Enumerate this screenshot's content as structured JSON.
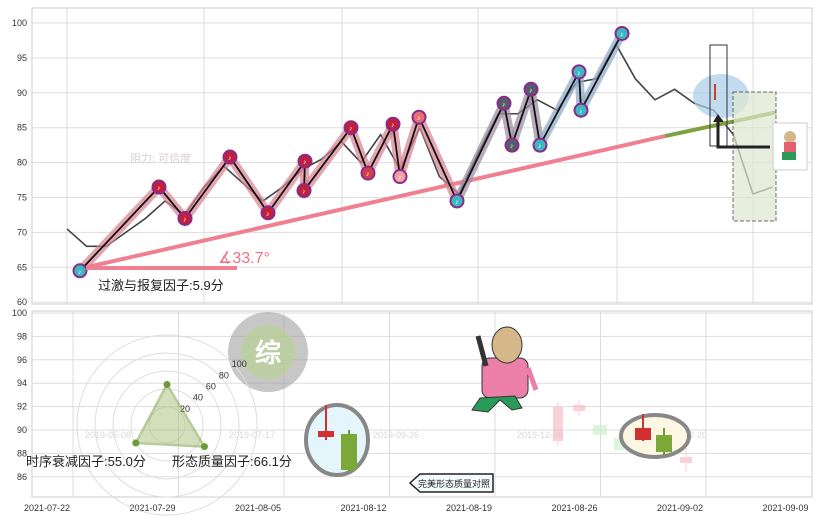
{
  "chart_data": [
    {
      "type": "line",
      "panel": "top",
      "ylim": [
        60,
        100
      ],
      "y_ticks": [
        "100",
        "95",
        "90",
        "85",
        "80",
        "75",
        "70",
        "65",
        "60"
      ],
      "grid": true,
      "close": [
        70.5,
        68,
        68,
        70,
        72,
        74.5,
        72.5,
        76.5,
        79.5,
        77,
        74.5,
        76.5,
        79,
        80.5,
        83,
        80,
        84,
        79,
        85,
        78,
        75.5,
        81.5,
        87,
        87,
        89,
        87.5,
        91.5,
        92,
        97,
        92,
        89,
        90.5,
        88.5,
        87.5,
        84,
        75.5,
        76.5
      ],
      "pivots": [
        64.5,
        76.5,
        72,
        80.8,
        72.8,
        80.2,
        76,
        85,
        78.5,
        85.5,
        78,
        86.5,
        74.5,
        88.5,
        82.5,
        90.5,
        82.5,
        93,
        87.5,
        98.5
      ],
      "trendline": {
        "start": 65,
        "end_red": 83.8,
        "end_green": 87.2,
        "color_red": "#f08090",
        "color_green": "#7fa040"
      },
      "angle_label": "∡33.7°",
      "factor_label": "过激与报复因子:5.9分",
      "watermark_text": "阻力: 可信度"
    },
    {
      "type": "radar",
      "panel": "bottom",
      "ylim": [
        86,
        100
      ],
      "y_ticks": [
        "100",
        "98",
        "96",
        "94",
        "92",
        "90",
        "88",
        "86"
      ],
      "x_ticks": [
        "2021-07-22",
        "2021-07-29",
        "2021-08-05",
        "2021-08-12",
        "2021-08-19",
        "2021-08-26",
        "2021-09-02",
        "2021-09-09"
      ],
      "radar_ring_labels": [
        "20",
        "40",
        "60",
        "80",
        "100"
      ],
      "radar_values": [
        45,
        40,
        48
      ],
      "watermark_dates": [
        "2019-05-08",
        "2019-07-17",
        "2019-09-26",
        "2019-12-06",
        "2020-02-20"
      ],
      "factor_labels": [
        "时序衰减因子:55.0分",
        "形态质量因子:66.1分"
      ],
      "compare_label": "完美形态质量对照",
      "stamp_char": "综"
    }
  ]
}
